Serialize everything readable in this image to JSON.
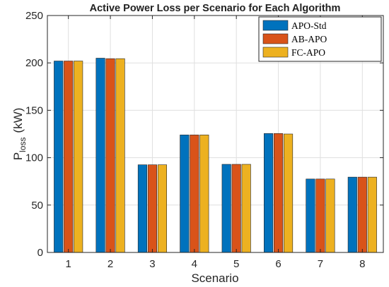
{
  "chart_data": {
    "type": "bar",
    "title": "Active Power Loss per Scenario for Each Algorithm",
    "xlabel": "Scenario",
    "ylabel": {
      "main": "P",
      "subscript": "loss",
      "unit": "(kW)"
    },
    "categories": [
      "1",
      "2",
      "3",
      "4",
      "5",
      "6",
      "7",
      "8"
    ],
    "ylim": [
      0,
      250
    ],
    "yticks": [
      "0",
      "50",
      "100",
      "150",
      "200",
      "250"
    ],
    "grid": true,
    "legend_position": "top-right",
    "series": [
      {
        "name": "APO-Std",
        "color": "#0072BD",
        "values": [
          202,
          205,
          92.5,
          124,
          93,
          125.5,
          77.5,
          79.5
        ]
      },
      {
        "name": "AB-APO",
        "color": "#D95319",
        "values": [
          202,
          204.5,
          92.5,
          124,
          93,
          125.5,
          77.5,
          79.5
        ]
      },
      {
        "name": "FC-APO",
        "color": "#EDB120",
        "values": [
          202,
          204.5,
          92.5,
          124,
          93,
          125,
          77.5,
          79.5
        ]
      }
    ]
  }
}
